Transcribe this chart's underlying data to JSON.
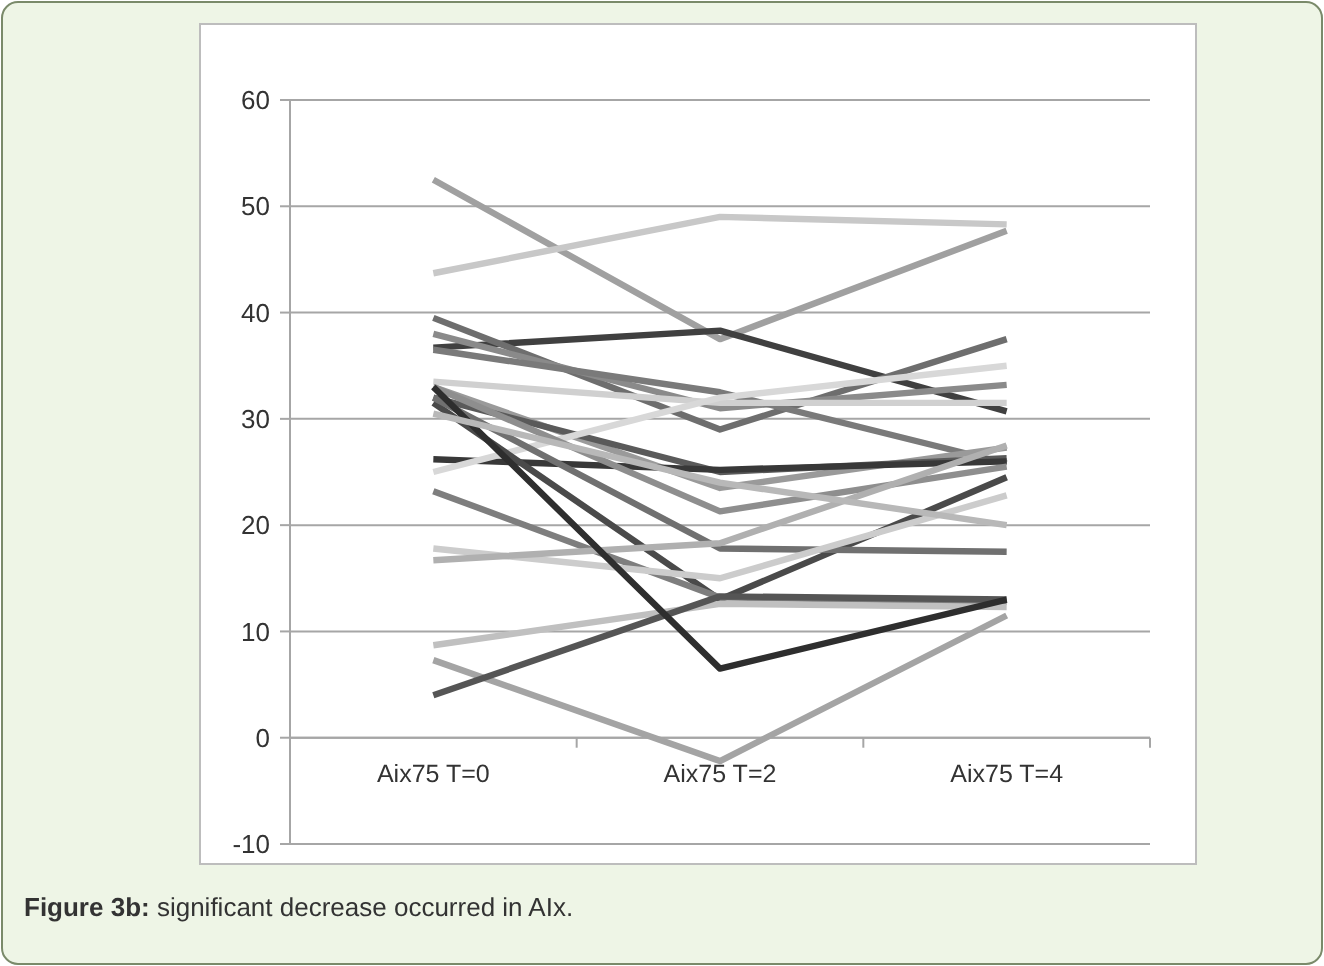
{
  "chart_data": {
    "type": "line",
    "categories": [
      "Aix75 T=0",
      "Aix75 T=2",
      "Aix75 T=4"
    ],
    "ylim": [
      -10,
      60
    ],
    "yticks": [
      -10,
      0,
      10,
      20,
      30,
      40,
      50,
      60
    ],
    "grid": "y",
    "marker": "none",
    "annotations": [
      "Figure 3b: significant decrease occurred in AIx."
    ],
    "series": [
      {
        "color": "#a0a0a0",
        "values": [
          52.5,
          37.5,
          47.7
        ]
      },
      {
        "color": "#c8c8c8",
        "values": [
          43.7,
          49,
          48.3
        ]
      },
      {
        "color": "#404040",
        "values": [
          36.7,
          38.3,
          30.7
        ]
      },
      {
        "color": "#6e6e6e",
        "values": [
          39.5,
          29,
          37.5
        ]
      },
      {
        "color": "#8a8a8a",
        "values": [
          38,
          31,
          33.2
        ]
      },
      {
        "color": "#7a7a7a",
        "values": [
          36.5,
          32.5,
          25.8
        ]
      },
      {
        "color": "#d0d0d0",
        "values": [
          33.5,
          31.5,
          31.5
        ]
      },
      {
        "color": "#9a9a9a",
        "values": [
          33,
          23.5,
          27.3
        ]
      },
      {
        "color": "#5a5a5a",
        "values": [
          32,
          25,
          26.3
        ]
      },
      {
        "color": "#383838",
        "values": [
          26.2,
          25.2,
          26
        ]
      },
      {
        "color": "#d8d8d8",
        "values": [
          25,
          32,
          35
        ]
      },
      {
        "color": "#8e8e8e",
        "values": [
          33,
          21.3,
          25.5
        ]
      },
      {
        "color": "#4a4a4a",
        "values": [
          31.5,
          13,
          24.5
        ]
      },
      {
        "color": "#707070",
        "values": [
          32,
          17.8,
          17.5
        ]
      },
      {
        "color": "#7e7e7e",
        "values": [
          23.2,
          13.2,
          12.8
        ]
      },
      {
        "color": "#cccccc",
        "values": [
          17.8,
          15,
          22.8
        ]
      },
      {
        "color": "#b0b0b0",
        "values": [
          16.7,
          18.3,
          27.5
        ]
      },
      {
        "color": "#c0c0c0",
        "values": [
          8.7,
          12.6,
          12.3
        ]
      },
      {
        "color": "#a4a4a4",
        "values": [
          7.3,
          -2.2,
          11.5
        ]
      },
      {
        "color": "#555555",
        "values": [
          4,
          13.3,
          13
        ]
      },
      {
        "color": "#2e2e2e",
        "values": [
          33,
          6.5,
          13
        ]
      },
      {
        "color": "#b8b8b8",
        "values": [
          30.5,
          24,
          20
        ]
      }
    ]
  }
}
